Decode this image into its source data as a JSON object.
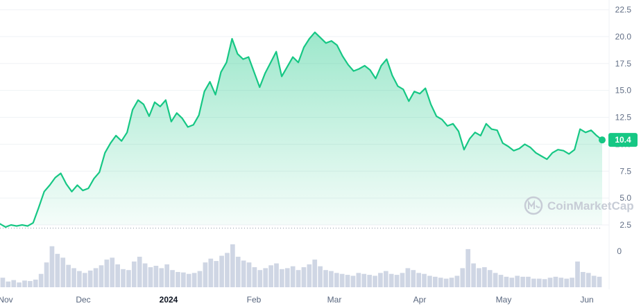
{
  "watermark": "CoinMarketCap",
  "colors": {
    "line": "#16c784",
    "area_top": "#16c784",
    "volume": "#cfd6e4",
    "badge": "#16c784",
    "grid": "#eff2f5",
    "baseline_dots": "#8b93a2"
  },
  "chart_data": {
    "type": "area",
    "y_axis": {
      "ticks": [
        "22.5",
        "20.0",
        "17.5",
        "15.0",
        "12.5",
        "10.0",
        "7.5",
        "5.0",
        "2.5"
      ],
      "range": [
        2.5,
        22.5
      ]
    },
    "x_axis": {
      "labels": [
        "Nov",
        "Dec",
        "2024",
        "Feb",
        "Mar",
        "Apr",
        "May",
        "Jun"
      ]
    },
    "volume_axis": {
      "ticks": [
        "0"
      ]
    },
    "last_value": "10.4",
    "baseline": 2.2,
    "series": [
      {
        "values": [
          2.6,
          2.3,
          2.5,
          2.4,
          2.5,
          2.4,
          2.7,
          4.1,
          5.6,
          6.2,
          6.9,
          7.3,
          6.3,
          5.6,
          6.2,
          5.7,
          5.9,
          6.8,
          7.4,
          9.2,
          10.1,
          10.8,
          10.3,
          11.1,
          13.2,
          14.1,
          13.7,
          12.6,
          13.9,
          13.5,
          14.1,
          12.1,
          12.9,
          12.4,
          11.6,
          11.8,
          12.7,
          14.9,
          15.8,
          14.6,
          16.7,
          17.6,
          19.8,
          18.4,
          17.9,
          18.1,
          16.7,
          15.3,
          16.6,
          17.6,
          18.6,
          16.3,
          17.2,
          18.1,
          17.6,
          19.0,
          19.8,
          20.4,
          19.9,
          19.4,
          19.6,
          19.2,
          18.2,
          17.4,
          16.8,
          17.0,
          17.3,
          16.9,
          16.1,
          17.3,
          17.9,
          16.4,
          15.4,
          15.1,
          14.0,
          14.9,
          14.7,
          15.2,
          13.7,
          12.6,
          12.3,
          11.7,
          11.9,
          11.2,
          9.5,
          10.5,
          11.1,
          10.8,
          11.9,
          11.4,
          11.3,
          10.1,
          9.8,
          9.4,
          9.6,
          10.0,
          9.7,
          9.2,
          8.9,
          8.6,
          9.2,
          9.5,
          9.4,
          9.1,
          9.5,
          11.4,
          11.1,
          11.3,
          10.8,
          10.4
        ]
      }
    ],
    "volume": [
      0.2,
      0.12,
      0.15,
      0.1,
      0.14,
      0.13,
      0.16,
      0.28,
      0.52,
      0.86,
      0.7,
      0.62,
      0.47,
      0.4,
      0.34,
      0.3,
      0.35,
      0.4,
      0.46,
      0.58,
      0.62,
      0.48,
      0.38,
      0.36,
      0.54,
      0.64,
      0.5,
      0.42,
      0.45,
      0.4,
      0.48,
      0.36,
      0.32,
      0.31,
      0.28,
      0.3,
      0.34,
      0.52,
      0.6,
      0.55,
      0.66,
      0.72,
      0.9,
      0.64,
      0.56,
      0.52,
      0.42,
      0.36,
      0.4,
      0.46,
      0.5,
      0.38,
      0.4,
      0.44,
      0.36,
      0.42,
      0.48,
      0.58,
      0.44,
      0.36,
      0.34,
      0.3,
      0.28,
      0.26,
      0.24,
      0.3,
      0.28,
      0.26,
      0.24,
      0.3,
      0.34,
      0.28,
      0.26,
      0.3,
      0.4,
      0.36,
      0.3,
      0.28,
      0.24,
      0.22,
      0.2,
      0.18,
      0.2,
      0.24,
      0.4,
      0.8,
      0.5,
      0.4,
      0.42,
      0.36,
      0.3,
      0.26,
      0.22,
      0.2,
      0.24,
      0.22,
      0.22,
      0.18,
      0.18,
      0.17,
      0.2,
      0.22,
      0.2,
      0.18,
      0.2,
      0.54,
      0.32,
      0.3,
      0.24,
      0.22
    ]
  }
}
